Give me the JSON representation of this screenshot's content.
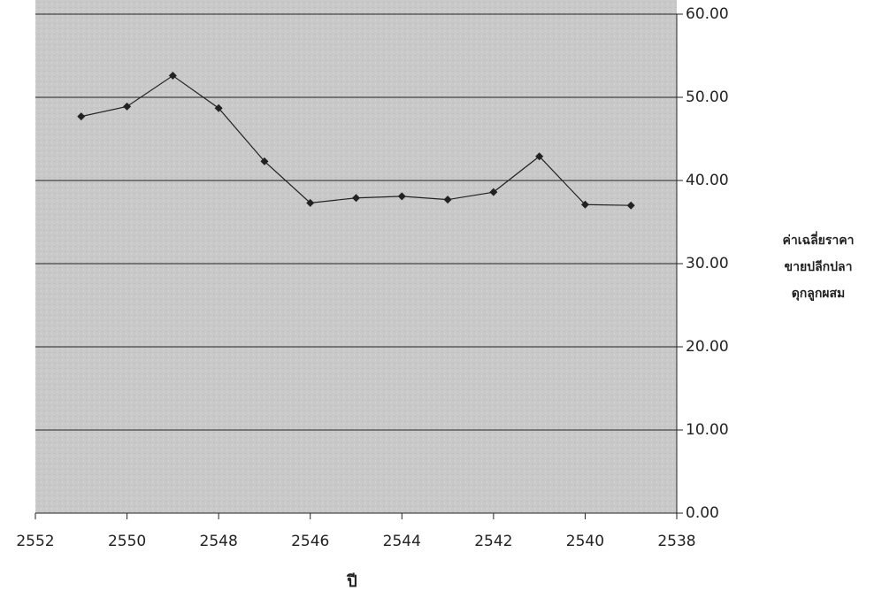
{
  "chart_data": {
    "type": "line",
    "x_label": "ปี",
    "y_label": [
      "ค่าเฉลี่ยราคา",
      "ขายปลีกปลา",
      "ดุกลูกผสม"
    ],
    "x": [
      2551,
      2550,
      2549,
      2548,
      2547,
      2546,
      2545,
      2544,
      2543,
      2542,
      2541,
      2540,
      2539
    ],
    "series": [
      {
        "color": "#222222",
        "values": [
          47.7,
          48.9,
          52.6,
          48.7,
          42.3,
          37.3,
          37.9,
          38.1,
          37.7,
          38.6,
          42.9,
          37.1,
          37.0
        ]
      }
    ],
    "xlim": [
      2552,
      2538
    ],
    "xticks": [
      2552,
      2550,
      2548,
      2546,
      2544,
      2542,
      2540,
      2538
    ],
    "ylim": [
      0,
      60
    ],
    "yticks": [
      {
        "value": 0,
        "label": "0.00"
      },
      {
        "value": 10,
        "label": "10.00"
      },
      {
        "value": 20,
        "label": "20.00"
      },
      {
        "value": 30,
        "label": "30.00"
      },
      {
        "value": 40,
        "label": "40.00"
      },
      {
        "value": 50,
        "label": "50.00"
      },
      {
        "value": 60,
        "label": "60.00"
      }
    ],
    "grid": true,
    "y_axis_side": "right"
  }
}
